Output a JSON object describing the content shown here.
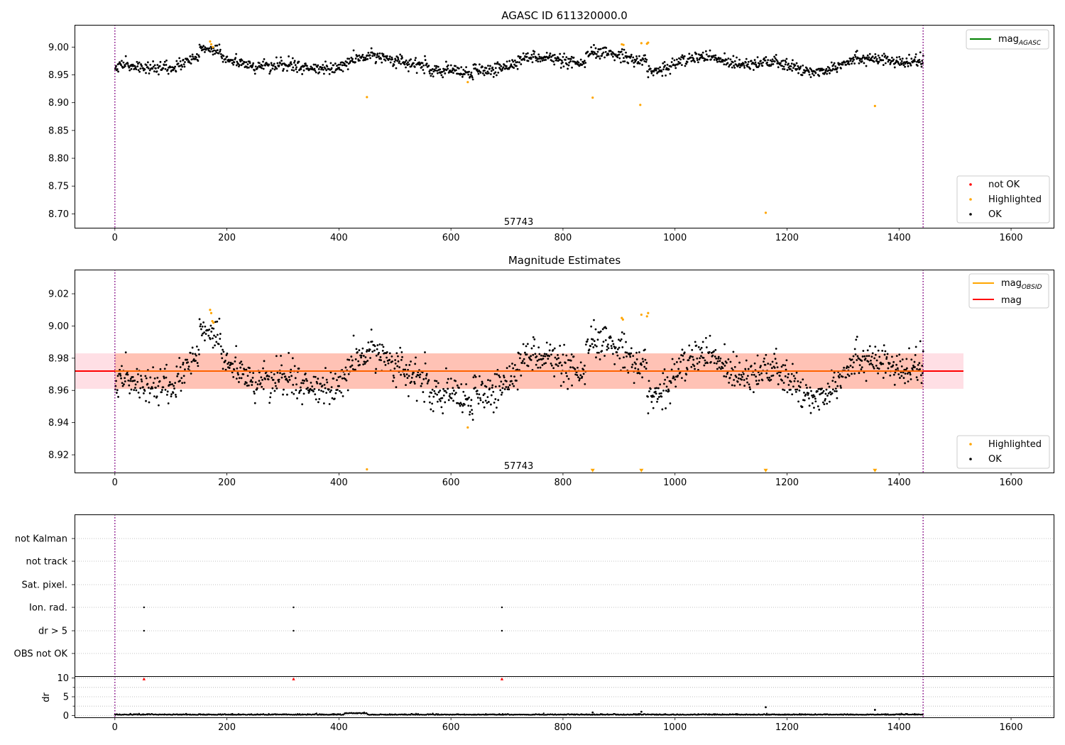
{
  "chart_data": [
    {
      "type": "scatter",
      "title": "AGASC ID 611320000.0",
      "xlabel": "",
      "ylabel": "",
      "xlim": [
        -72,
        1676
      ],
      "ylim": [
        8.675,
        9.04
      ],
      "x_ticks": [
        0,
        200,
        400,
        600,
        800,
        1000,
        1200,
        1400,
        1600
      ],
      "y_ticks": [
        8.7,
        8.75,
        8.8,
        8.85,
        8.9,
        8.95,
        9.0
      ],
      "y_tick_decimals": 2,
      "vlines": [
        0,
        1443
      ],
      "annotation": {
        "text": "57743",
        "x": 721,
        "y": 8.685
      },
      "lines": [
        {
          "name": "mag",
          "subscript": "AGASC",
          "y": 9.04,
          "x_range": [
            -72,
            1676
          ],
          "color": "#008000"
        }
      ],
      "band": null,
      "legend_upper": [
        {
          "label": "mag",
          "subscript": "AGASC",
          "kind": "line",
          "color": "#008000"
        }
      ],
      "legend_lower": [
        {
          "label": "not OK",
          "kind": "dot",
          "color": "#ff0000"
        },
        {
          "label": "Highlighted",
          "kind": "dot",
          "color": "#ffa500"
        },
        {
          "label": "OK",
          "kind": "dot",
          "color": "#000000"
        }
      ],
      "series": [
        {
          "name": "OK",
          "color": "#000000",
          "points": "synthetic: ~1450 points for t in [0,1443], mag ~8.97 +/- 0.02 with slow modulation"
        },
        {
          "name": "Highlighted",
          "color": "#ffa500",
          "points": [
            [
              170,
              9.01
            ],
            [
              172,
              9.005
            ],
            [
              175,
              9.0
            ],
            [
              450,
              8.91
            ],
            [
              630,
              8.937
            ],
            [
              853,
              8.909
            ],
            [
              905,
              9.005
            ],
            [
              908,
              9.004
            ],
            [
              938,
              8.896
            ],
            [
              940,
              9.007
            ],
            [
              950,
              9.006
            ],
            [
              952,
              9.008
            ],
            [
              1162,
              8.702
            ],
            [
              1357,
              8.894
            ]
          ]
        }
      ]
    },
    {
      "type": "scatter",
      "title": "Magnitude Estimates",
      "xlabel": "",
      "ylabel": "",
      "xlim": [
        -72,
        1676
      ],
      "ylim": [
        8.909,
        9.035
      ],
      "x_ticks": [
        0,
        200,
        400,
        600,
        800,
        1000,
        1200,
        1400,
        1600
      ],
      "y_ticks": [
        8.92,
        8.94,
        8.96,
        8.98,
        9.0,
        9.02
      ],
      "y_tick_decimals": 2,
      "vlines": [
        0,
        1443
      ],
      "annotation": {
        "text": "57743",
        "x": 721,
        "y": 8.913
      },
      "lines": [
        {
          "name": "mag",
          "y": 8.972,
          "x_range": [
            -72,
            1515
          ],
          "color": "#ff0000"
        }
      ],
      "band": {
        "y0": 8.961,
        "y1": 8.983,
        "x_range": [
          -72,
          1515
        ],
        "inner_x_range": [
          0,
          1443
        ]
      },
      "legend_upper": [
        {
          "label": "mag",
          "subscript": "OBSID",
          "kind": "line",
          "color": "#ffa500"
        },
        {
          "label": "mag",
          "kind": "line",
          "color": "#ff0000"
        }
      ],
      "legend_lower": [
        {
          "label": "Highlighted",
          "kind": "dot",
          "color": "#ffa500"
        },
        {
          "label": "OK",
          "kind": "dot",
          "color": "#000000"
        }
      ],
      "series": [
        {
          "name": "OK",
          "color": "#000000",
          "points": "synthetic: ~1450 points for t in [0,1443], mag ~8.97 +/- 0.02"
        },
        {
          "name": "Highlighted",
          "color": "#ffa500",
          "points": [
            [
              170,
              9.01
            ],
            [
              172,
              9.008
            ],
            [
              174,
              9.003
            ],
            [
              176,
              9.002
            ],
            [
              450,
              8.911
            ],
            [
              630,
              8.937
            ],
            [
              905,
              9.005
            ],
            [
              907,
              9.004
            ],
            [
              940,
              9.007
            ],
            [
              952,
              9.008
            ],
            [
              950,
              9.006
            ]
          ]
        },
        {
          "name": "below-limit",
          "color": "#ffa500",
          "marker": "triangle-down",
          "points": [
            [
              853,
              8.91
            ],
            [
              940,
              8.91
            ],
            [
              1162,
              8.91
            ],
            [
              1357,
              8.91
            ]
          ]
        }
      ]
    },
    {
      "type": "scatter",
      "title": "",
      "xlim": [
        -72,
        1676
      ],
      "flag_rows": [
        "not Kalman",
        "not track",
        "Sat. pixel.",
        "Ion. rad.",
        "dr > 5",
        "OBS not OK"
      ],
      "flags": {
        "Ion. rad.": [
          52,
          319,
          691
        ],
        "dr > 5": [
          52,
          319,
          691
        ]
      },
      "vlines": [
        0,
        1443
      ]
    },
    {
      "type": "scatter",
      "title": "",
      "xlabel": "",
      "ylabel": "dr",
      "xlim": [
        -72,
        1676
      ],
      "ylim": [
        -0.5,
        10.5
      ],
      "x_ticks": [
        0,
        200,
        400,
        600,
        800,
        1000,
        1200,
        1400,
        1600
      ],
      "y_ticks": [
        0,
        5,
        10
      ],
      "y_tick_decimals": 0,
      "vlines": [
        0,
        1443
      ],
      "clipped_markers": [
        52,
        319,
        691
      ],
      "outliers": [
        [
          853,
          0.8
        ],
        [
          940,
          1.0
        ],
        [
          1162,
          2.2
        ],
        [
          1357,
          1.5
        ]
      ]
    }
  ]
}
